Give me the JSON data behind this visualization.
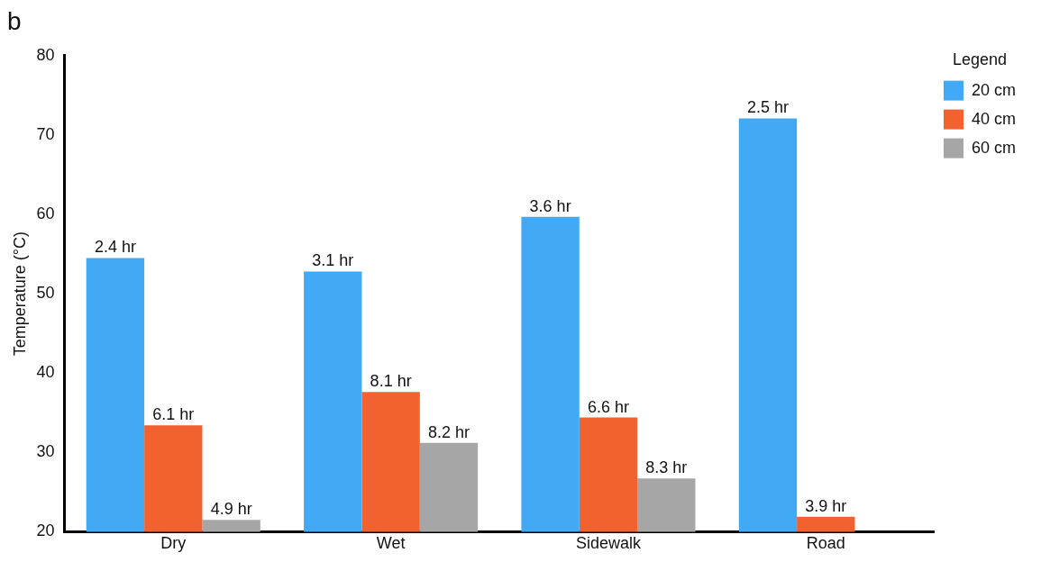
{
  "chart_data": {
    "type": "bar",
    "ylabel": "Temperature (°C)",
    "legend_title": "Legend",
    "legend": "top right",
    "grid": false,
    "annotations": [
      "b",
      "2.4 hr",
      "3.1 hr",
      "3.6 hr",
      "2.5 hr",
      "6.1 hr",
      "8.1 hr",
      "6.6 hr",
      "3.9 hr",
      "4.9 hr",
      "8.2 hr",
      "8.3 hr"
    ],
    "categories": [
      "Dry",
      "Wet",
      "Sidewalk",
      "Road"
    ],
    "series": [
      {
        "name": "20 cm",
        "color": "#42aaf5",
        "values": [
          54.5,
          52.8,
          59.7,
          72.1
        ]
      },
      {
        "name": "40 cm",
        "color": "#f2622e",
        "values": [
          33.4,
          37.6,
          34.4,
          21.9
        ]
      },
      {
        "name": "60 cm",
        "color": "#a6a6a6",
        "values": [
          21.5,
          31.2,
          26.7,
          null
        ]
      }
    ],
    "ylim": [
      20,
      80
    ],
    "yticks": [
      20,
      30,
      40,
      50,
      60,
      70,
      80
    ]
  }
}
